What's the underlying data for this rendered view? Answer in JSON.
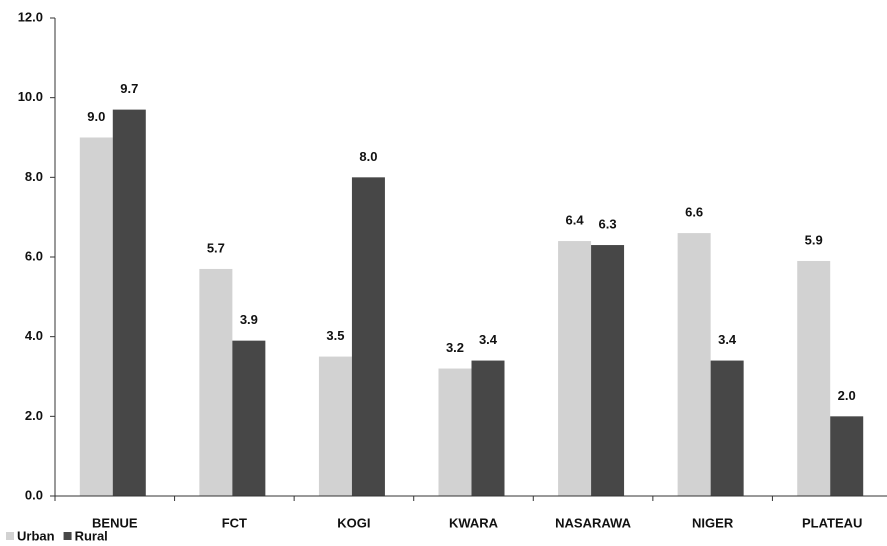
{
  "chart_data": {
    "type": "bar",
    "categories": [
      "BENUE",
      "FCT",
      "KOGI",
      "KWARA",
      "NASARAWA",
      "NIGER",
      "PLATEAU"
    ],
    "series": [
      {
        "name": "Urban",
        "color": "#d2d2d2",
        "values": [
          9.0,
          5.7,
          3.5,
          3.2,
          6.4,
          6.6,
          5.9
        ],
        "value_labels": [
          "9.0",
          "5.7",
          "3.5",
          "3.2",
          "6.4",
          "6.6",
          "5.9"
        ]
      },
      {
        "name": "Rural",
        "color": "#474747",
        "values": [
          9.7,
          3.9,
          8.0,
          3.4,
          6.3,
          3.4,
          2.0
        ],
        "value_labels": [
          "9.7",
          "3.9",
          "8.0",
          "3.4",
          "6.3",
          "3.4",
          "2.0"
        ]
      }
    ],
    "ylim": [
      0,
      12
    ],
    "yticks": [
      {
        "value": 0,
        "label": "0.0"
      },
      {
        "value": 2,
        "label": "2.0"
      },
      {
        "value": 4,
        "label": "4.0"
      },
      {
        "value": 6,
        "label": "6.0"
      },
      {
        "value": 8,
        "label": "8.0"
      },
      {
        "value": 10,
        "label": "10.0"
      },
      {
        "value": 12,
        "label": "12.0"
      }
    ],
    "legend": "bottom-left"
  }
}
